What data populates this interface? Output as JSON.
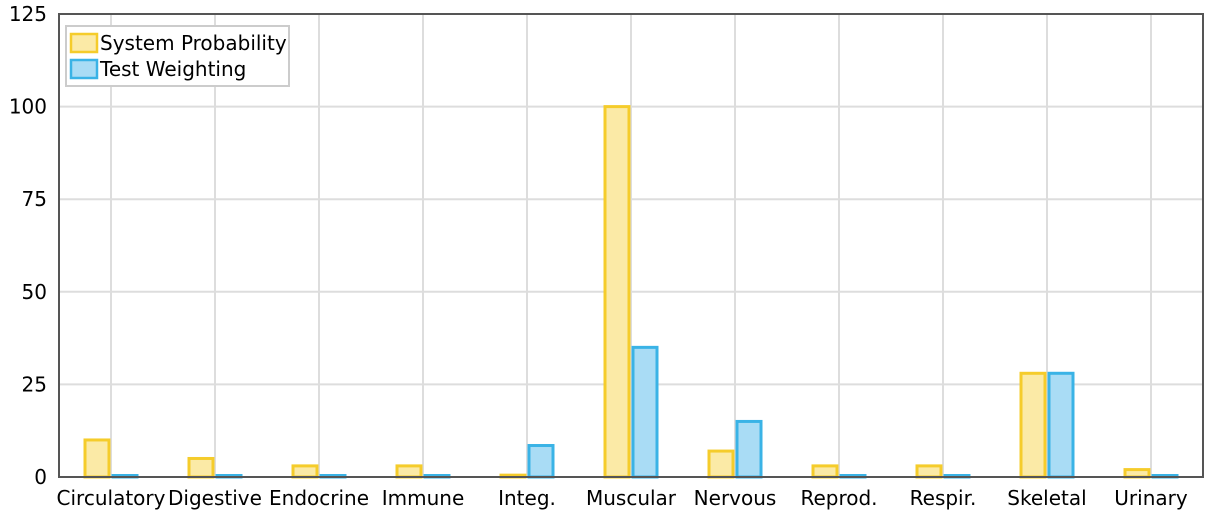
{
  "chart_data": {
    "type": "bar",
    "title": "",
    "xlabel": "",
    "ylabel": "",
    "categories": [
      "Circulatory",
      "Digestive",
      "Endocrine",
      "Immune",
      "Integ.",
      "Muscular",
      "Nervous",
      "Reprod.",
      "Respir.",
      "Skeletal",
      "Urinary"
    ],
    "series": [
      {
        "name": "System Probability",
        "values": [
          10,
          5,
          3,
          3,
          0.5,
          100,
          7,
          3,
          3,
          28,
          2
        ],
        "color": "#f5cc2b",
        "fill": "#fbeaa6"
      },
      {
        "name": "Test Weighting",
        "values": [
          0.3,
          0.3,
          0.3,
          0.3,
          8.5,
          35,
          15,
          0.3,
          0.3,
          28,
          0.3
        ],
        "color": "#3ab3e6",
        "fill": "#a9dcf5"
      }
    ],
    "ylim": [
      0,
      125
    ],
    "yticks": [
      0,
      25,
      50,
      75,
      100,
      125
    ],
    "grid": true,
    "legend": "top-left"
  }
}
